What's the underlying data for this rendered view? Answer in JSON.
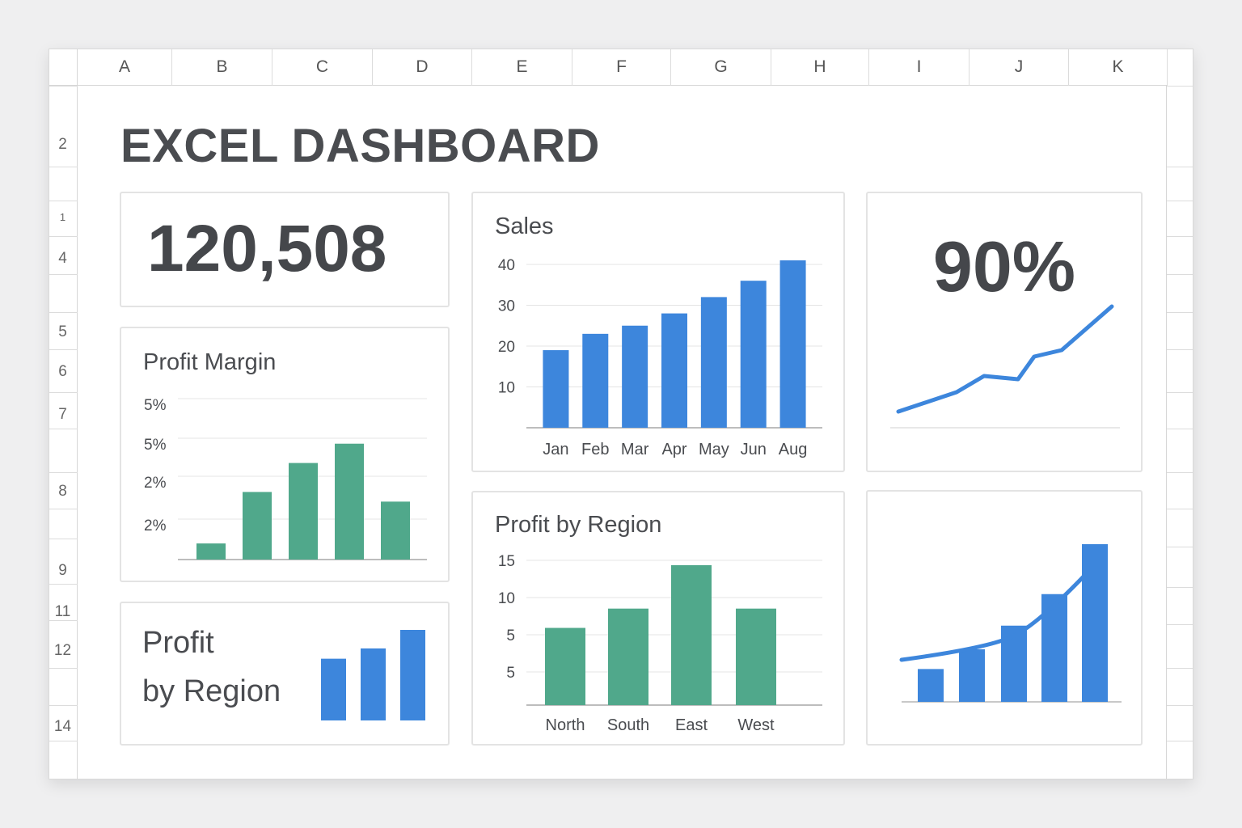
{
  "sheet": {
    "columns": [
      "A",
      "B",
      "C",
      "D",
      "E",
      "F",
      "G",
      "H",
      "I",
      "J",
      "K"
    ],
    "rows": [
      "2",
      "1",
      "4",
      "5",
      "6",
      "7",
      "8",
      "9",
      "11",
      "12",
      "14"
    ]
  },
  "dashboard": {
    "title": "EXCEL DASHBOARD",
    "kpi_value": "120,508",
    "kpi_percent": "90%",
    "profit_region_small_title_line1": "Profit",
    "profit_region_small_title_line2": "by Region"
  },
  "colors": {
    "blue": "#3d86dc",
    "green": "#50a88b",
    "text_dark": "#45474b",
    "grid": "#e4e4e4"
  },
  "chart_data": [
    {
      "type": "bar",
      "title": "Sales",
      "categories": [
        "Jan",
        "Feb",
        "Mar",
        "Apr",
        "May",
        "Jun",
        "Aug"
      ],
      "values": [
        19,
        23,
        25,
        28,
        32,
        36,
        41
      ],
      "yticks": [
        "40",
        "30",
        "20",
        "10"
      ],
      "ylim": [
        0,
        40
      ],
      "color": "blue"
    },
    {
      "type": "bar",
      "title": "Profit Margin",
      "yticks": [
        "5%",
        "5%",
        "2%",
        "2%"
      ],
      "values": [
        0.5,
        2.1,
        3.0,
        3.6,
        1.8
      ],
      "ylim": [
        0,
        5
      ],
      "color": "green"
    },
    {
      "type": "bar",
      "title": "Profit by Region",
      "categories": [
        "North",
        "South",
        "East",
        "West"
      ],
      "values": [
        8,
        10,
        14.5,
        10
      ],
      "yticks": [
        "15",
        "10",
        "5",
        "5"
      ],
      "ylim": [
        0,
        15
      ],
      "color": "green"
    },
    {
      "type": "line",
      "values": [
        1.0,
        2.2,
        3.2,
        3.0,
        4.4,
        4.8,
        7.5
      ],
      "ylim": [
        0,
        8
      ],
      "color": "blue"
    },
    {
      "type": "bar",
      "values": [
        2.5,
        4,
        5.8,
        8.2,
        12
      ],
      "trend": [
        3.2,
        3.9,
        5.0,
        6.6,
        9.6
      ],
      "ylim": [
        0,
        12.8
      ],
      "color": "blue"
    },
    {
      "type": "bar",
      "values": [
        3,
        3.5,
        4.4
      ],
      "ylim": [
        0,
        4.4
      ],
      "color": "blue"
    }
  ]
}
